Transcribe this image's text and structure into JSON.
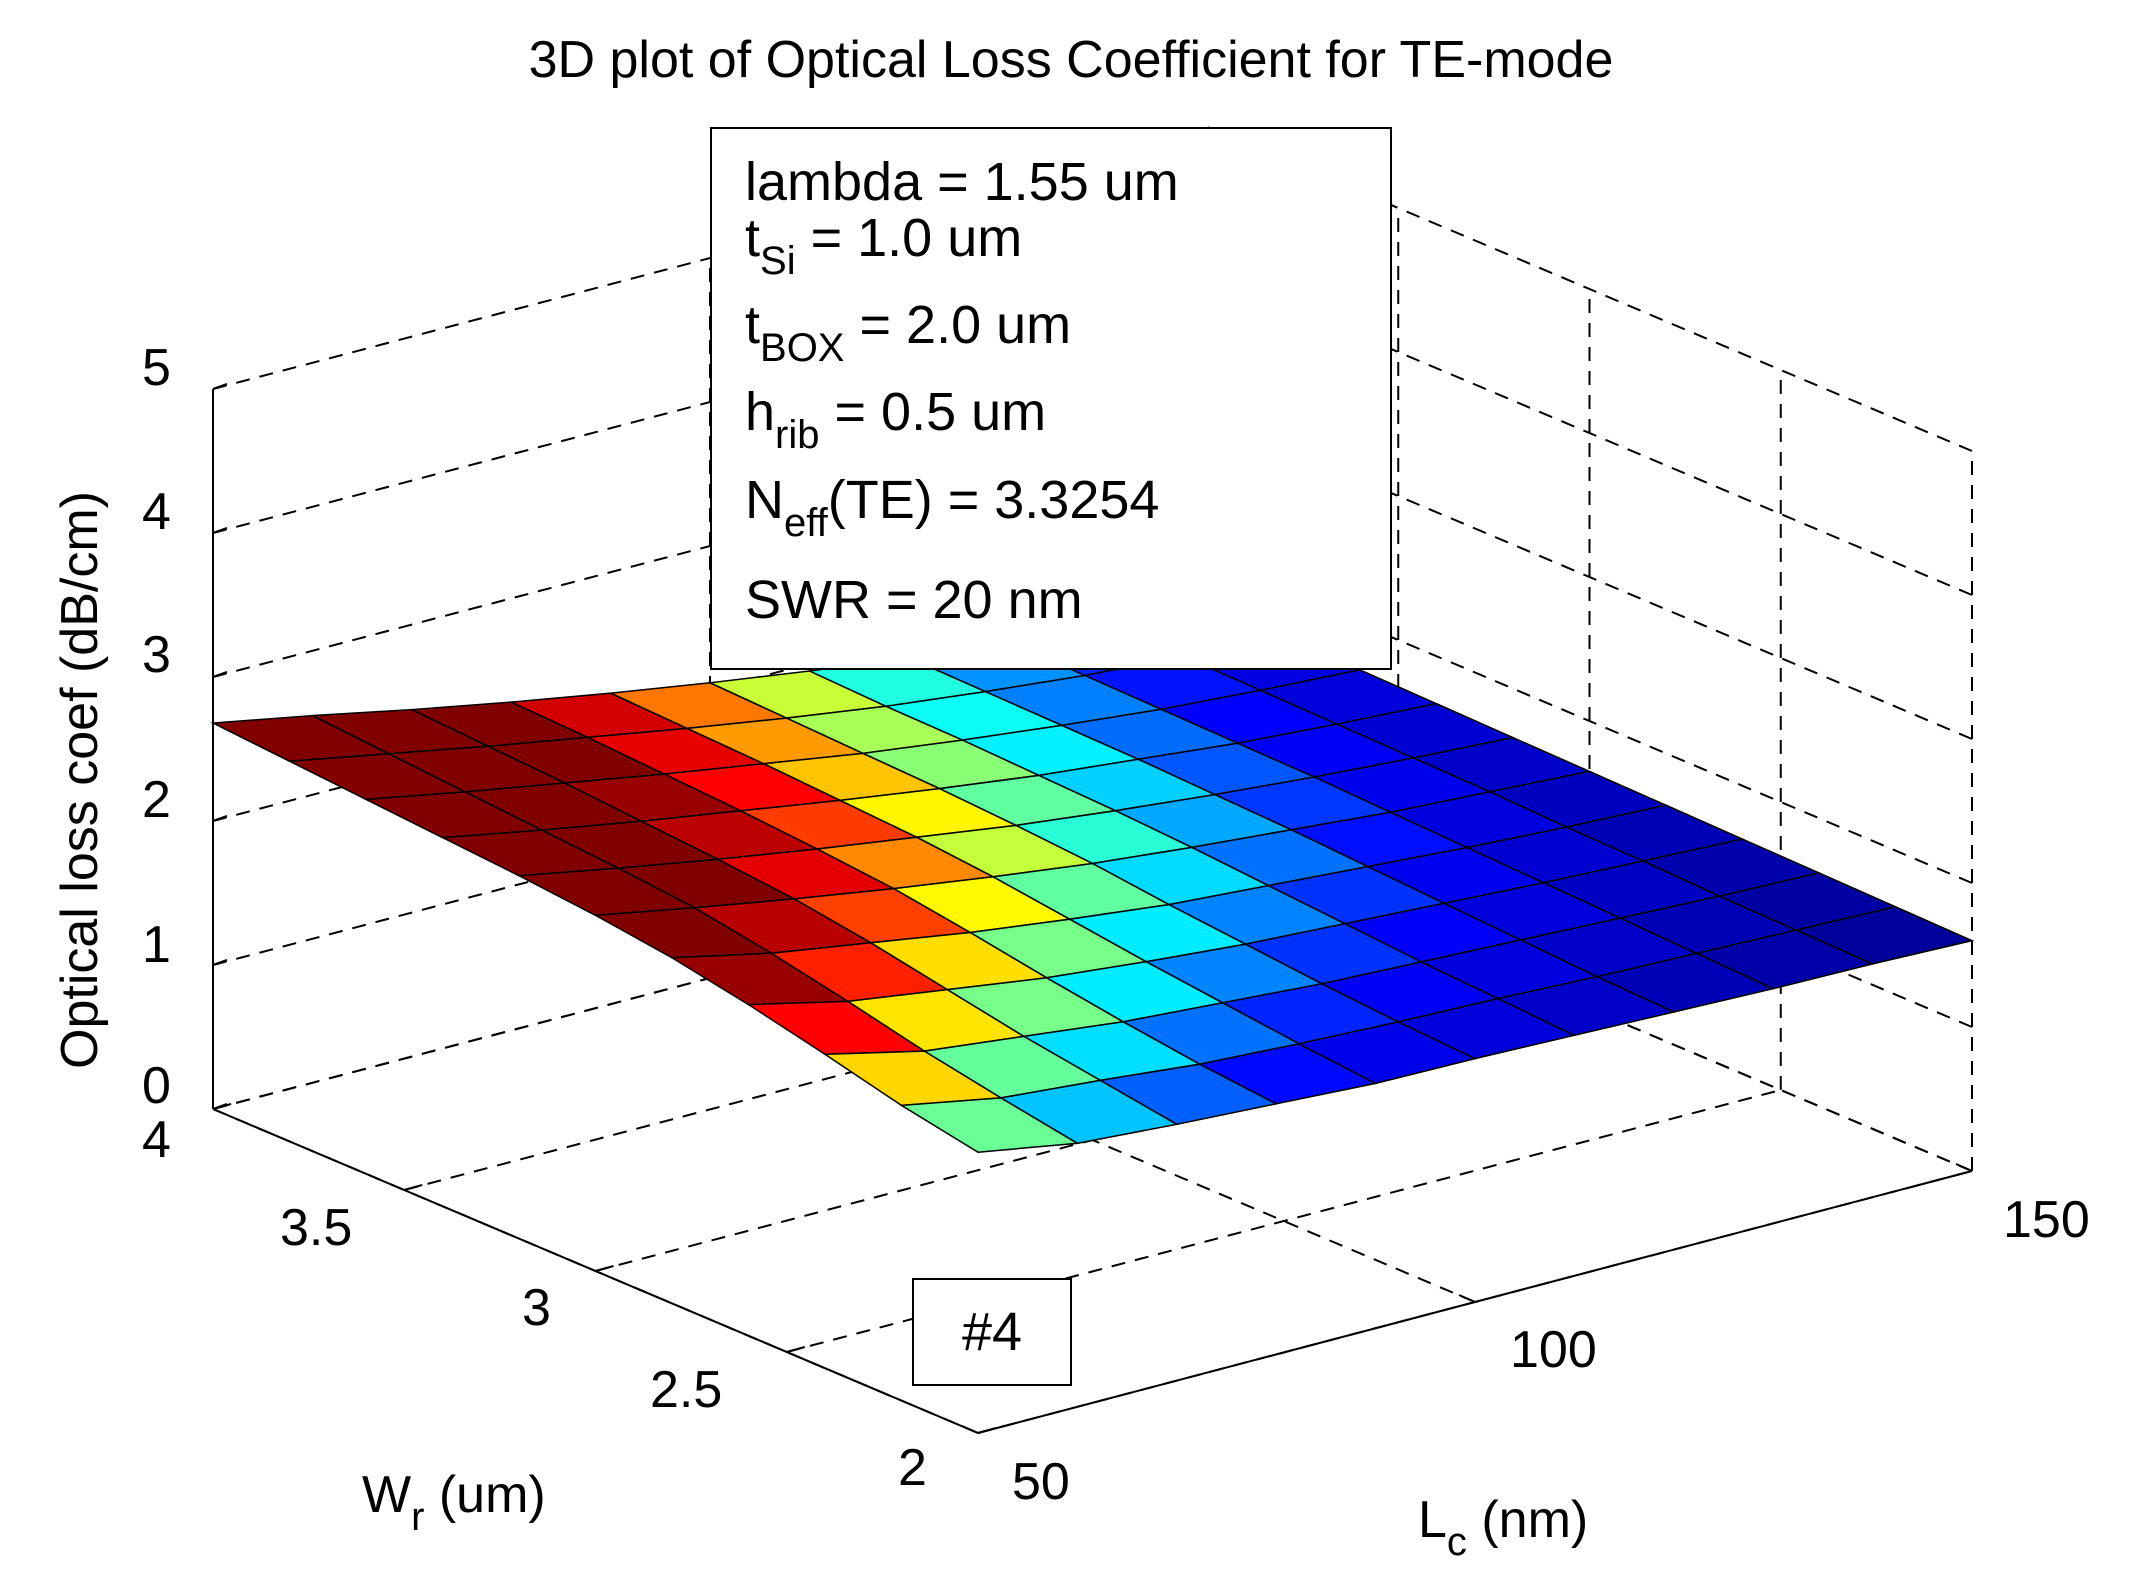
{
  "chart_data": {
    "type": "surface",
    "title": "3D plot of Optical Loss Coefficient for TE-mode",
    "xlabel": {
      "main": "L",
      "sub": "c",
      "rest": " (nm)"
    },
    "ylabel": {
      "main": "W",
      "sub": "r",
      "rest": " (um)"
    },
    "zlabel": "Optical loss coef (dB/cm)",
    "xlim": [
      50,
      150
    ],
    "ylim": [
      2,
      4
    ],
    "zlim": [
      0,
      5
    ],
    "x_ticks": [
      "50",
      "100",
      "150"
    ],
    "y_ticks": [
      "2",
      "2.5",
      "3",
      "3.5",
      "4"
    ],
    "z_ticks": [
      "0",
      "1",
      "2",
      "3",
      "4",
      "5"
    ],
    "colormap": "jet",
    "colormap_stops": [
      "#00008f",
      "#0000ff",
      "#00ffff",
      "#ffff00",
      "#ff0000",
      "#800000"
    ],
    "color_range": [
      1.6,
      2.3
    ],
    "grid": true,
    "x": [
      50,
      60,
      70,
      80,
      90,
      100,
      110,
      120,
      130,
      140,
      150
    ],
    "y": [
      2.0,
      2.2,
      2.4,
      2.6,
      2.8,
      3.0,
      3.2,
      3.4,
      3.6,
      3.8,
      4.0
    ],
    "z": [
      [
        1.95,
        1.83,
        1.78,
        1.74,
        1.7,
        1.69,
        1.67,
        1.65,
        1.63,
        1.62,
        1.6
      ],
      [
        2.05,
        1.92,
        1.86,
        1.79,
        1.75,
        1.72,
        1.7,
        1.67,
        1.65,
        1.63,
        1.61
      ],
      [
        2.18,
        2.02,
        1.94,
        1.86,
        1.81,
        1.76,
        1.73,
        1.7,
        1.67,
        1.64,
        1.62
      ],
      [
        2.3,
        2.14,
        2.04,
        1.94,
        1.87,
        1.81,
        1.77,
        1.73,
        1.69,
        1.66,
        1.63
      ],
      [
        2.4,
        2.25,
        2.14,
        2.03,
        1.94,
        1.86,
        1.81,
        1.76,
        1.71,
        1.67,
        1.64
      ],
      [
        2.47,
        2.34,
        2.22,
        2.11,
        2.01,
        1.92,
        1.85,
        1.79,
        1.73,
        1.69,
        1.65
      ],
      [
        2.52,
        2.39,
        2.27,
        2.16,
        2.06,
        1.96,
        1.88,
        1.81,
        1.75,
        1.7,
        1.66
      ],
      [
        2.56,
        2.43,
        2.31,
        2.2,
        2.09,
        1.99,
        1.9,
        1.83,
        1.76,
        1.71,
        1.67
      ],
      [
        2.6,
        2.47,
        2.35,
        2.23,
        2.12,
        2.01,
        1.92,
        1.84,
        1.77,
        1.72,
        1.68
      ],
      [
        2.64,
        2.51,
        2.38,
        2.26,
        2.14,
        2.03,
        1.93,
        1.85,
        1.78,
        1.73,
        1.69
      ],
      [
        2.68,
        2.55,
        2.41,
        2.28,
        2.16,
        2.05,
        1.95,
        1.86,
        1.79,
        1.74,
        1.7
      ]
    ]
  },
  "info_box": {
    "lines": [
      {
        "main": "lambda = 1.55 um"
      },
      {
        "main": "t",
        "sub": "Si",
        "rest": " = 1.0 um"
      },
      {
        "main": "t",
        "sub": "BOX",
        "rest": " = 2.0 um"
      },
      {
        "main": "h",
        "sub": "rib",
        "rest": " = 0.5 um"
      },
      {
        "main": "N",
        "sub": "eff",
        "rest": "(TE) = 3.3254"
      },
      {
        "main": "SWR = 20 nm"
      }
    ]
  },
  "figure_tag": "#4"
}
